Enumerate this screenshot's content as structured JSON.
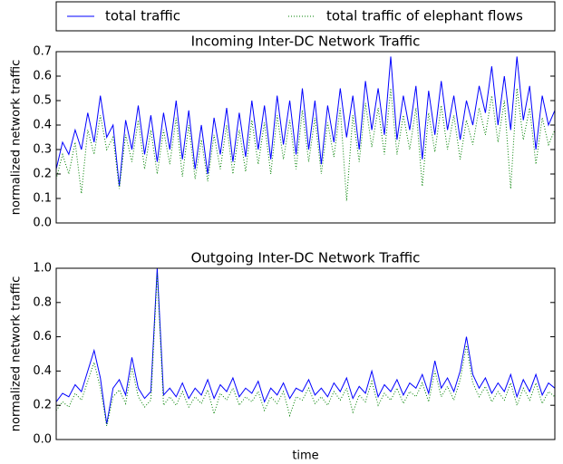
{
  "chart_data": [
    {
      "type": "line",
      "title": "Incoming Inter-DC Network Traffic",
      "ylabel": "normalized network traffic",
      "ylim": [
        0,
        0.7
      ],
      "yticks": [
        {
          "value": 0,
          "label": "0.0"
        },
        0.1,
        0.2,
        0.3,
        0.4,
        0.5,
        0.6,
        0.7
      ],
      "legend": "top",
      "series": [
        {
          "name": "total traffic",
          "color": "#0000ff",
          "style": "solid",
          "values": [
            0.22,
            0.33,
            0.28,
            0.38,
            0.3,
            0.45,
            0.33,
            0.52,
            0.35,
            0.4,
            0.15,
            0.42,
            0.3,
            0.48,
            0.28,
            0.44,
            0.25,
            0.45,
            0.3,
            0.5,
            0.26,
            0.46,
            0.22,
            0.4,
            0.2,
            0.43,
            0.28,
            0.47,
            0.25,
            0.45,
            0.27,
            0.5,
            0.3,
            0.48,
            0.26,
            0.52,
            0.32,
            0.5,
            0.28,
            0.55,
            0.3,
            0.5,
            0.24,
            0.48,
            0.33,
            0.55,
            0.35,
            0.52,
            0.3,
            0.58,
            0.38,
            0.55,
            0.36,
            0.68,
            0.34,
            0.52,
            0.38,
            0.56,
            0.26,
            0.54,
            0.36,
            0.58,
            0.38,
            0.52,
            0.34,
            0.5,
            0.4,
            0.56,
            0.45,
            0.64,
            0.4,
            0.6,
            0.38,
            0.68,
            0.42,
            0.56,
            0.3,
            0.52,
            0.4,
            0.46
          ]
        },
        {
          "name": "total traffic of elephant flows",
          "color": "#008000",
          "style": "dotted",
          "values": [
            0.18,
            0.28,
            0.2,
            0.33,
            0.12,
            0.38,
            0.28,
            0.44,
            0.3,
            0.35,
            0.14,
            0.36,
            0.25,
            0.42,
            0.22,
            0.38,
            0.2,
            0.38,
            0.24,
            0.43,
            0.19,
            0.4,
            0.18,
            0.34,
            0.17,
            0.36,
            0.22,
            0.4,
            0.2,
            0.38,
            0.21,
            0.42,
            0.24,
            0.41,
            0.2,
            0.44,
            0.26,
            0.42,
            0.22,
            0.46,
            0.25,
            0.43,
            0.2,
            0.41,
            0.27,
            0.47,
            0.09,
            0.44,
            0.25,
            0.49,
            0.31,
            0.47,
            0.28,
            0.55,
            0.28,
            0.44,
            0.3,
            0.47,
            0.15,
            0.45,
            0.29,
            0.48,
            0.3,
            0.44,
            0.26,
            0.42,
            0.32,
            0.47,
            0.36,
            0.52,
            0.33,
            0.5,
            0.14,
            0.55,
            0.34,
            0.47,
            0.24,
            0.43,
            0.32,
            0.38
          ]
        }
      ]
    },
    {
      "type": "line",
      "title": "Outgoing Inter-DC Network Traffic",
      "ylabel": "normalized network traffic",
      "xlabel": "time",
      "ylim": [
        0,
        1
      ],
      "yticks": [
        {
          "value": 0,
          "label": "0.0"
        },
        0.2,
        0.4,
        0.6,
        0.8,
        {
          "value": 1,
          "label": "1.0"
        }
      ],
      "series": [
        {
          "color": "#0000ff",
          "style": "solid",
          "values": [
            0.22,
            0.27,
            0.25,
            0.32,
            0.28,
            0.4,
            0.52,
            0.36,
            0.09,
            0.3,
            0.35,
            0.26,
            0.48,
            0.3,
            0.24,
            0.28,
            1.0,
            0.26,
            0.3,
            0.25,
            0.33,
            0.24,
            0.3,
            0.26,
            0.35,
            0.24,
            0.32,
            0.28,
            0.36,
            0.25,
            0.3,
            0.27,
            0.34,
            0.22,
            0.3,
            0.26,
            0.33,
            0.24,
            0.3,
            0.28,
            0.35,
            0.26,
            0.3,
            0.25,
            0.33,
            0.28,
            0.36,
            0.24,
            0.31,
            0.27,
            0.4,
            0.25,
            0.32,
            0.28,
            0.35,
            0.26,
            0.33,
            0.3,
            0.38,
            0.27,
            0.46,
            0.3,
            0.36,
            0.28,
            0.4,
            0.6,
            0.38,
            0.3,
            0.36,
            0.27,
            0.33,
            0.28,
            0.38,
            0.25,
            0.35,
            0.28,
            0.38,
            0.26,
            0.33,
            0.3
          ]
        },
        {
          "color": "#008000",
          "style": "dotted",
          "values": [
            0.17,
            0.22,
            0.19,
            0.27,
            0.23,
            0.34,
            0.45,
            0.3,
            0.08,
            0.25,
            0.29,
            0.21,
            0.42,
            0.25,
            0.19,
            0.23,
            0.97,
            0.2,
            0.25,
            0.2,
            0.28,
            0.19,
            0.25,
            0.21,
            0.29,
            0.15,
            0.27,
            0.23,
            0.3,
            0.2,
            0.25,
            0.22,
            0.28,
            0.17,
            0.25,
            0.21,
            0.28,
            0.14,
            0.25,
            0.23,
            0.3,
            0.21,
            0.25,
            0.2,
            0.28,
            0.23,
            0.3,
            0.16,
            0.26,
            0.22,
            0.34,
            0.2,
            0.27,
            0.23,
            0.3,
            0.21,
            0.28,
            0.25,
            0.33,
            0.22,
            0.4,
            0.25,
            0.31,
            0.23,
            0.35,
            0.55,
            0.33,
            0.25,
            0.31,
            0.22,
            0.28,
            0.23,
            0.33,
            0.2,
            0.3,
            0.23,
            0.33,
            0.21,
            0.28,
            0.25
          ]
        }
      ]
    }
  ]
}
